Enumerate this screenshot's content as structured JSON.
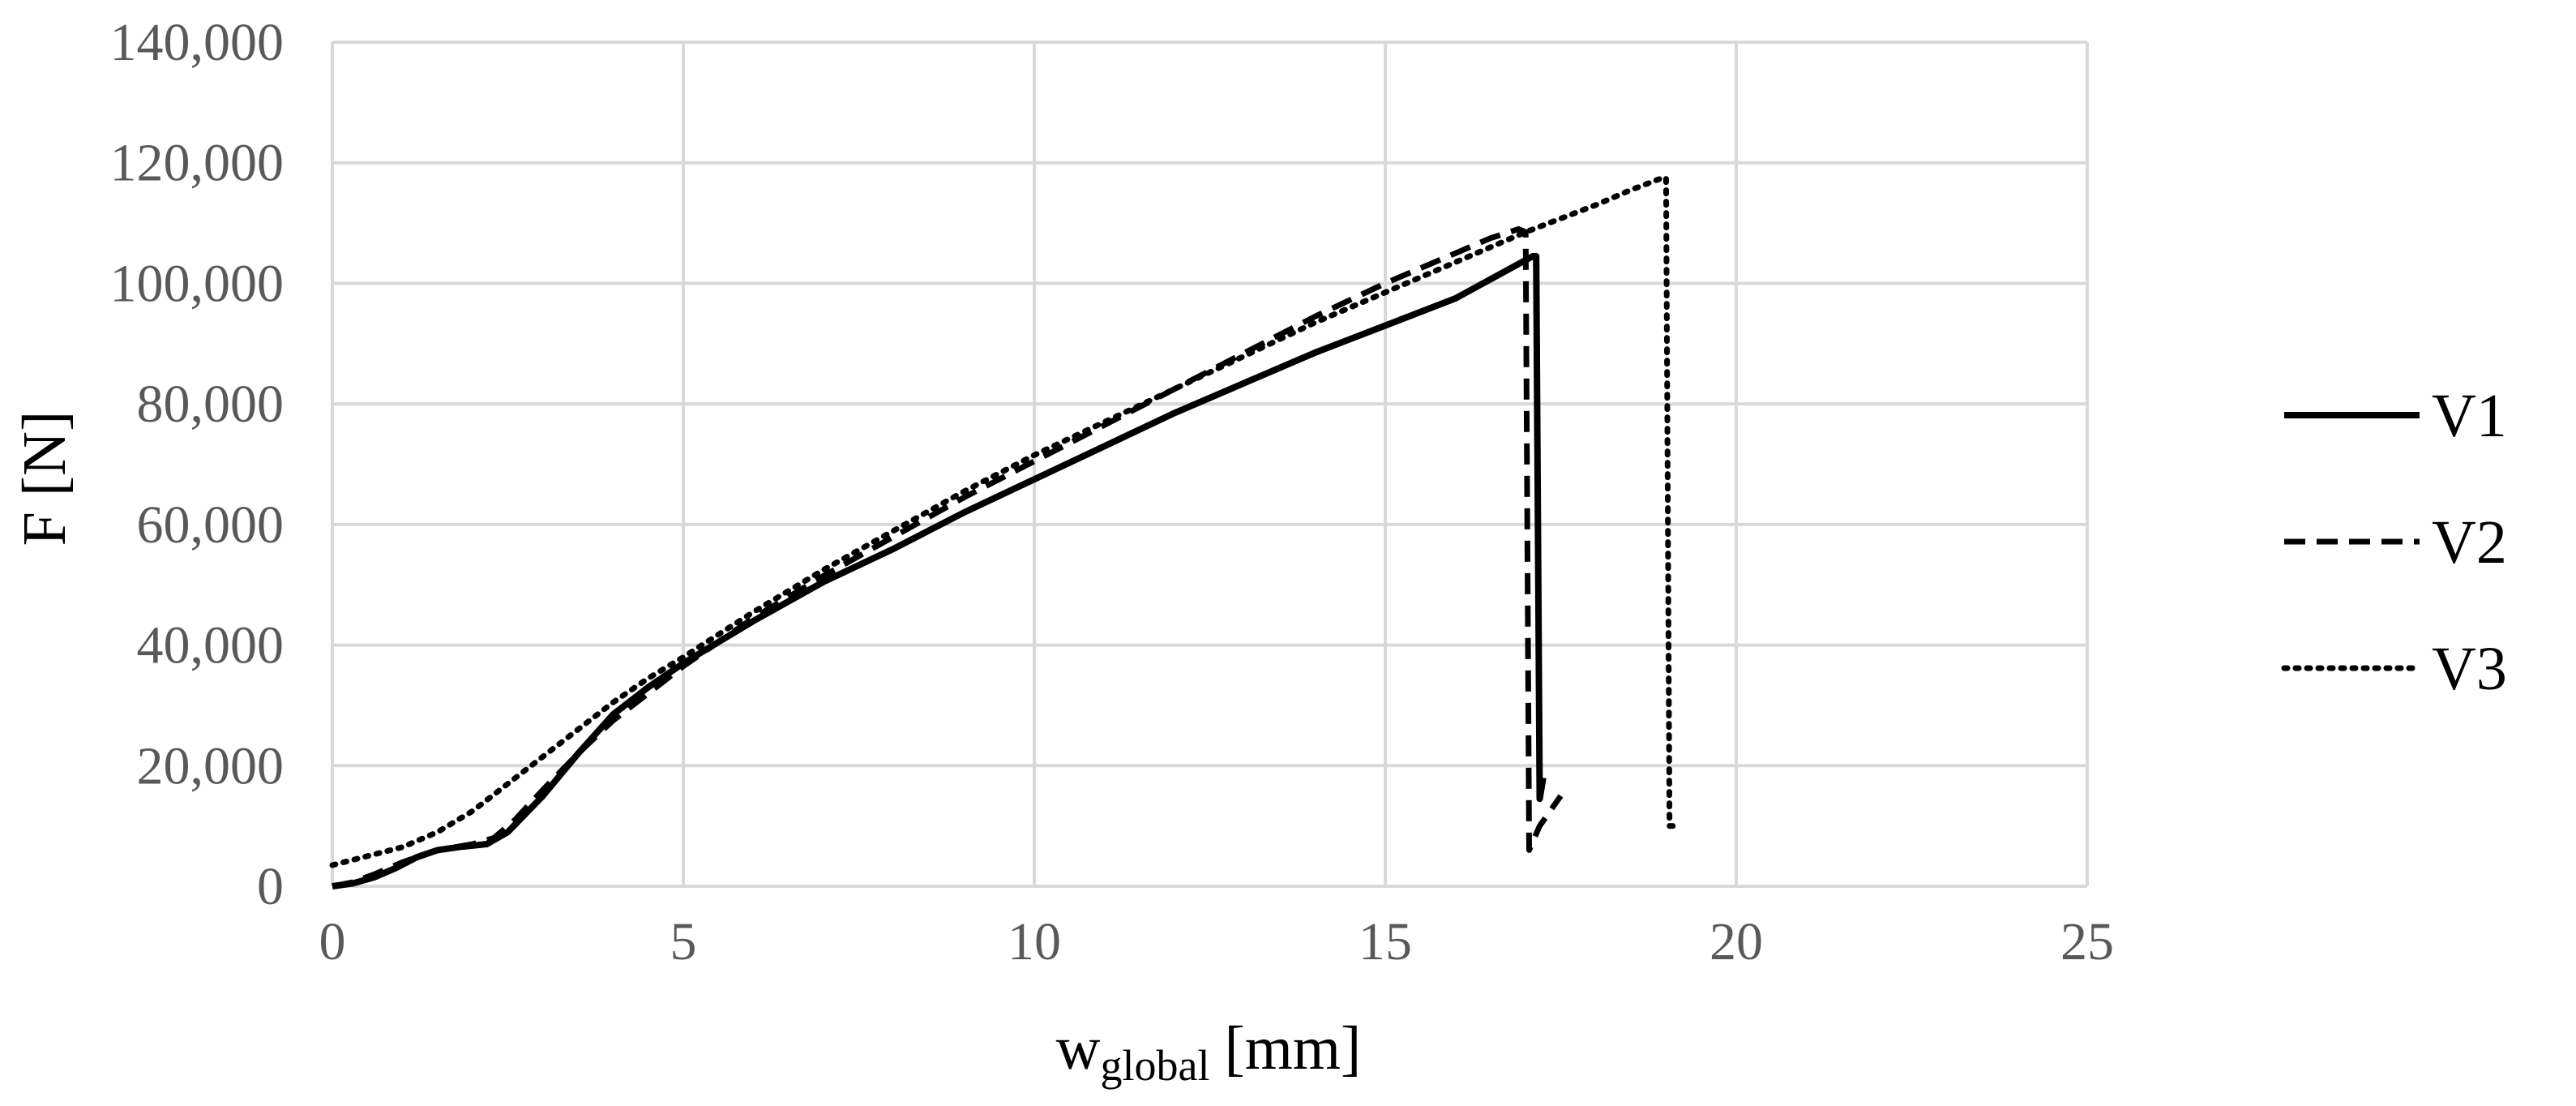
{
  "chart_data": {
    "type": "line",
    "xlabel": "w",
    "xlabel_subscript": "global",
    "xlabel_unit": "[mm]",
    "ylabel": "F [N]",
    "xlim": [
      0,
      25
    ],
    "ylim": [
      0,
      140000
    ],
    "x_ticks": [
      "0",
      "5",
      "10",
      "15",
      "20",
      "25"
    ],
    "y_ticks": [
      "0",
      "20,000",
      "40,000",
      "60,000",
      "80,000",
      "100,000",
      "120,000",
      "140,000"
    ],
    "grid": true,
    "legend_position": "right",
    "colors": {
      "line": "#000000",
      "grid": "#d9d9d9",
      "tick_text": "#595959"
    },
    "series": [
      {
        "name": "V1",
        "dash": "solid",
        "x": [
          0,
          0.3,
          0.6,
          0.9,
          1.2,
          1.5,
          1.8,
          2.2,
          2.5,
          3.0,
          3.5,
          4.0,
          4.5,
          5.0,
          6.0,
          7.0,
          8.0,
          9.0,
          10.0,
          11.0,
          12.0,
          13.0,
          14.0,
          15.0,
          16.0,
          17.1,
          17.15,
          17.2,
          17.25
        ],
        "y": [
          0,
          500,
          1500,
          3000,
          4800,
          6000,
          6500,
          7000,
          9000,
          15000,
          22000,
          28500,
          33000,
          37000,
          44000,
          50500,
          56000,
          62000,
          67500,
          73000,
          78500,
          83500,
          88500,
          93000,
          97500,
          104500,
          104500,
          14500,
          18000
        ]
      },
      {
        "name": "V2",
        "dash": "dashed",
        "x": [
          0,
          0.3,
          0.6,
          1.0,
          1.5,
          2.0,
          2.3,
          2.6,
          3.0,
          3.5,
          4.0,
          4.5,
          5.0,
          6.0,
          7.0,
          8.0,
          9.0,
          10.0,
          11.0,
          12.0,
          13.0,
          14.0,
          15.0,
          16.0,
          16.5,
          16.9,
          17.0,
          17.05,
          17.2,
          17.5
        ],
        "y": [
          0,
          700,
          2000,
          4000,
          6000,
          7000,
          8000,
          11000,
          16000,
          22000,
          27500,
          32000,
          36500,
          44500,
          51500,
          58000,
          64500,
          70500,
          76500,
          82500,
          88500,
          94500,
          100000,
          105000,
          107500,
          109000,
          108500,
          6000,
          10000,
          15000
        ]
      },
      {
        "name": "V3",
        "dash": "dotted",
        "x": [
          0,
          0.5,
          1.0,
          1.5,
          2.0,
          2.5,
          3.0,
          3.5,
          4.0,
          4.5,
          5.0,
          6.0,
          7.0,
          8.0,
          9.0,
          10.0,
          11.0,
          12.0,
          13.0,
          14.0,
          15.0,
          16.0,
          17.0,
          18.0,
          18.5,
          18.95,
          19.0,
          19.05,
          19.1
        ],
        "y": [
          3500,
          5000,
          6500,
          9000,
          12500,
          17000,
          21500,
          26000,
          30500,
          34500,
          38000,
          45500,
          52500,
          59000,
          65500,
          71500,
          77000,
          82500,
          88000,
          93500,
          98500,
          103500,
          108500,
          113000,
          115500,
          117500,
          117500,
          10000,
          10000
        ]
      }
    ]
  }
}
